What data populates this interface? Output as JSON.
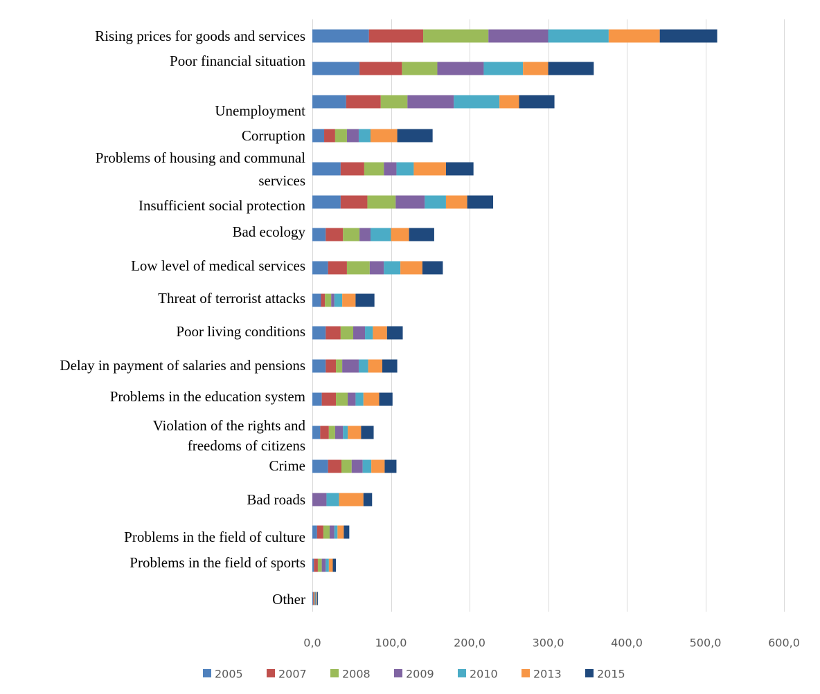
{
  "chart_data": {
    "type": "bar",
    "orientation": "horizontal",
    "stacked": true,
    "categories": [
      "Rising prices for goods and services",
      "Poor financial situation",
      "Unemployment",
      "Corruption",
      "Problems of housing and communal services",
      "Insufficient social protection",
      "Bad ecology",
      "Low level of medical services",
      "Threat of terrorist attacks",
      "Poor living conditions",
      "Delay in payment of salaries and pensions",
      "Problems in the education system",
      "Violation of the rights and freedoms of citizens",
      "Crime",
      "Bad roads",
      "Problems in the field of culture",
      "Problems in the field of sports",
      "Other"
    ],
    "category_label_lines": [
      [
        "Rising prices for goods and services"
      ],
      [
        "Poor financial situation"
      ],
      [
        "Unemployment"
      ],
      [
        "Corruption"
      ],
      [
        "Problems of housing and communal",
        "services"
      ],
      [
        "Insufficient social protection"
      ],
      [
        "Bad ecology"
      ],
      [
        "Low level of medical services"
      ],
      [
        "Threat of terrorist attacks"
      ],
      [
        "Poor living conditions"
      ],
      [
        "Delay in payment of salaries and pensions"
      ],
      [
        "Problems in the education system"
      ],
      [
        "Violation of the rights and",
        "freedoms of citizens"
      ],
      [
        "Crime"
      ],
      [
        "Bad roads"
      ],
      [
        "Problems in the field of culture"
      ],
      [
        "Problems in the field of sports"
      ],
      [
        "Other"
      ]
    ],
    "series": [
      {
        "name": "2005",
        "color": "#4f81bd",
        "values": [
          72,
          60,
          43,
          15,
          36,
          36,
          17,
          20,
          11,
          17,
          17,
          12,
          10,
          20,
          0,
          6,
          2,
          1
        ]
      },
      {
        "name": "2007",
        "color": "#c0504d",
        "values": [
          69,
          54,
          44,
          14,
          30,
          34,
          22,
          24,
          5,
          19,
          13,
          18,
          11,
          17,
          0,
          8,
          5,
          1
        ]
      },
      {
        "name": "2008",
        "color": "#9bbb59",
        "values": [
          83,
          45,
          34,
          15,
          25,
          36,
          21,
          29,
          8,
          16,
          8,
          15,
          8,
          13,
          0,
          8,
          5,
          1
        ]
      },
      {
        "name": "2009",
        "color": "#8064a2",
        "values": [
          76,
          59,
          59,
          15,
          16,
          37,
          14,
          18,
          4,
          15,
          21,
          10,
          10,
          14,
          18,
          6,
          5,
          1
        ]
      },
      {
        "name": "2010",
        "color": "#4bacc6",
        "values": [
          77,
          50,
          58,
          15,
          22,
          27,
          26,
          21,
          10,
          10,
          12,
          10,
          6,
          11,
          16,
          4,
          4,
          1
        ]
      },
      {
        "name": "2013",
        "color": "#f79646",
        "values": [
          65,
          32,
          25,
          34,
          41,
          27,
          23,
          28,
          17,
          18,
          18,
          20,
          17,
          17,
          31,
          8,
          5,
          1
        ]
      },
      {
        "name": "2015",
        "color": "#1f497d",
        "values": [
          73,
          58,
          45,
          45,
          35,
          33,
          32,
          26,
          24,
          20,
          19,
          17,
          16,
          15,
          11,
          7,
          4,
          1
        ]
      }
    ],
    "x_ticks": [
      "0,0",
      "100,0",
      "200,0",
      "300,0",
      "400,0",
      "500,0",
      "600,0"
    ],
    "xlim": [
      0,
      600
    ],
    "xlabel": "",
    "ylabel": "",
    "title": "",
    "grid": "vertical",
    "legend_position": "bottom"
  }
}
